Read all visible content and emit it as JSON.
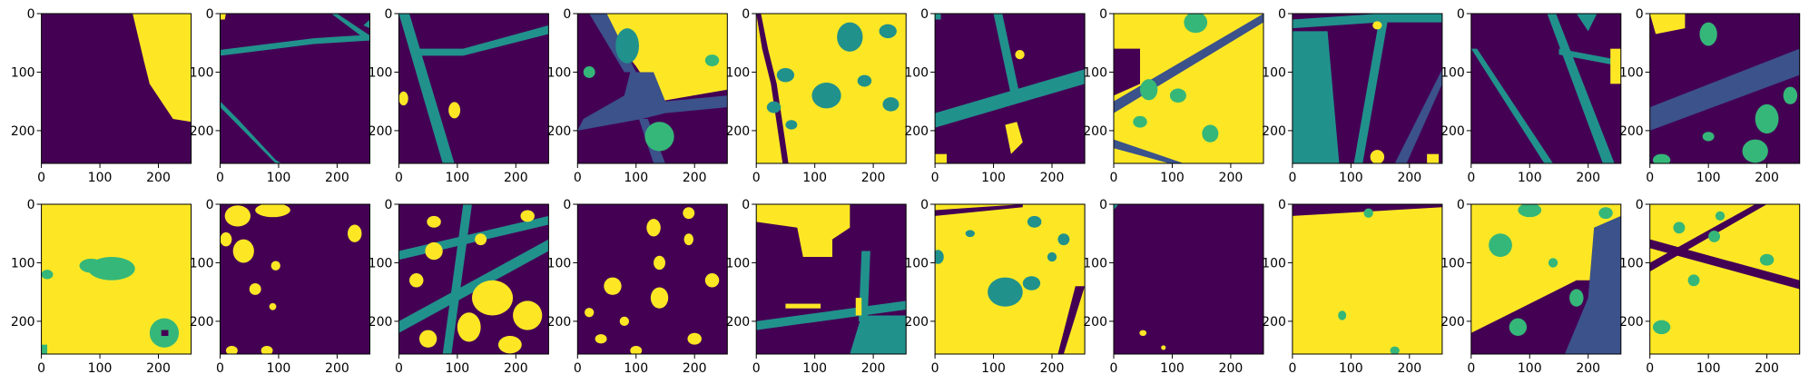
{
  "figure": {
    "rows": 2,
    "cols": 10
  },
  "colors": {
    "background": "#440154",
    "yellow": "#fde725",
    "teal": "#21918c",
    "green": "#35b779",
    "blue": "#3b528b",
    "frame": "#000000"
  },
  "chart_data": {
    "type": "heatmap",
    "description_units": "pixels (0-256 image coordinates)",
    "xlim": [
      0,
      256
    ],
    "ylim": [
      256,
      0
    ],
    "x_ticks": [
      0,
      100,
      200
    ],
    "y_ticks": [
      0,
      100,
      200
    ],
    "x_tick_labels": [
      "0",
      "100",
      "200"
    ],
    "y_tick_labels": [
      "0",
      "100",
      "200"
    ],
    "colormap": "viridis",
    "panels": [
      {
        "row": 0,
        "col": 0,
        "classes": [
          "background",
          "yellow"
        ]
      },
      {
        "row": 0,
        "col": 1,
        "classes": [
          "background",
          "teal"
        ]
      },
      {
        "row": 0,
        "col": 2,
        "classes": [
          "background",
          "teal",
          "yellow"
        ]
      },
      {
        "row": 0,
        "col": 3,
        "classes": [
          "background",
          "yellow",
          "blue",
          "green",
          "teal"
        ]
      },
      {
        "row": 0,
        "col": 4,
        "classes": [
          "yellow",
          "teal",
          "background"
        ]
      },
      {
        "row": 0,
        "col": 5,
        "classes": [
          "background",
          "teal",
          "yellow"
        ]
      },
      {
        "row": 0,
        "col": 6,
        "classes": [
          "yellow",
          "background",
          "teal",
          "green"
        ]
      },
      {
        "row": 0,
        "col": 7,
        "classes": [
          "background",
          "teal",
          "yellow"
        ]
      },
      {
        "row": 0,
        "col": 8,
        "classes": [
          "background",
          "teal",
          "yellow"
        ]
      },
      {
        "row": 0,
        "col": 9,
        "classes": [
          "background",
          "blue",
          "green",
          "yellow"
        ]
      },
      {
        "row": 1,
        "col": 0,
        "classes": [
          "yellow",
          "green",
          "background"
        ]
      },
      {
        "row": 1,
        "col": 1,
        "classes": [
          "background",
          "yellow"
        ]
      },
      {
        "row": 1,
        "col": 2,
        "classes": [
          "background",
          "yellow",
          "teal"
        ]
      },
      {
        "row": 1,
        "col": 3,
        "classes": [
          "background",
          "yellow"
        ]
      },
      {
        "row": 1,
        "col": 4,
        "classes": [
          "background",
          "yellow",
          "teal"
        ]
      },
      {
        "row": 1,
        "col": 5,
        "classes": [
          "yellow",
          "teal",
          "background"
        ]
      },
      {
        "row": 1,
        "col": 6,
        "classes": [
          "background",
          "yellow"
        ]
      },
      {
        "row": 1,
        "col": 7,
        "classes": [
          "yellow",
          "background",
          "green"
        ]
      },
      {
        "row": 1,
        "col": 8,
        "classes": [
          "yellow",
          "green",
          "blue",
          "background"
        ]
      },
      {
        "row": 1,
        "col": 9,
        "classes": [
          "yellow",
          "background",
          "green"
        ]
      }
    ]
  }
}
